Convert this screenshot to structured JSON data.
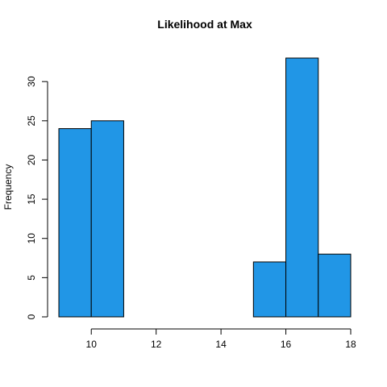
{
  "chart_data": {
    "type": "bar",
    "title": "Likelihood at Max",
    "xlabel": "",
    "ylabel": "Frequency",
    "bins": [
      {
        "start": 9,
        "end": 10,
        "count": 24
      },
      {
        "start": 10,
        "end": 11,
        "count": 25
      },
      {
        "start": 11,
        "end": 12,
        "count": 0
      },
      {
        "start": 12,
        "end": 13,
        "count": 0
      },
      {
        "start": 13,
        "end": 14,
        "count": 0
      },
      {
        "start": 14,
        "end": 15,
        "count": 0
      },
      {
        "start": 15,
        "end": 16,
        "count": 7
      },
      {
        "start": 16,
        "end": 17,
        "count": 33
      },
      {
        "start": 17,
        "end": 18,
        "count": 8
      }
    ],
    "x_ticks": [
      10,
      12,
      14,
      16,
      18
    ],
    "y_ticks": [
      0,
      5,
      10,
      15,
      20,
      25,
      30
    ],
    "xlim": [
      9,
      18
    ],
    "ylim": [
      0,
      33
    ],
    "bar_color": "#2196e6",
    "grid": false
  }
}
